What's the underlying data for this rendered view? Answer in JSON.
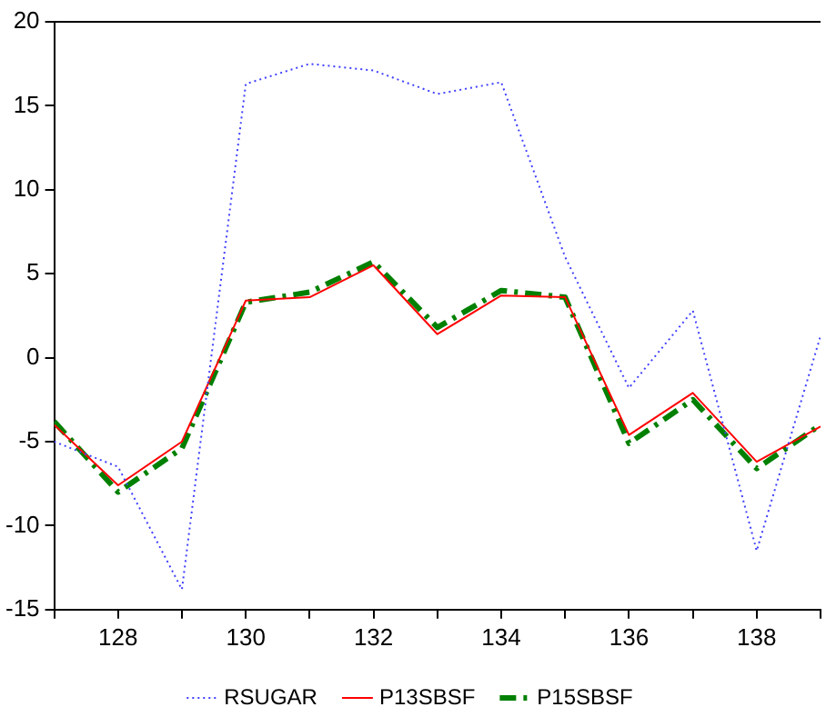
{
  "chart_data": {
    "type": "line",
    "x": [
      127,
      128,
      129,
      130,
      131,
      132,
      133,
      134,
      135,
      136,
      137,
      138,
      139
    ],
    "series": [
      {
        "name": "RSUGAR",
        "color": "#4040ff",
        "line_style": "dotted",
        "values": [
          -5,
          -6.5,
          -13.8,
          16.3,
          17.5,
          17.1,
          15.7,
          16.4,
          6,
          -1.8,
          2.8,
          -11.5,
          1.3
        ]
      },
      {
        "name": "P13SBSF",
        "color": "#ff0000",
        "line_style": "solid",
        "values": [
          -4,
          -7.6,
          -5.0,
          3.4,
          3.6,
          5.5,
          1.4,
          3.7,
          3.6,
          -4.6,
          -2.1,
          -6.2,
          -4.1
        ]
      },
      {
        "name": "P15SBSF",
        "color": "#008000",
        "line_style": "dashed",
        "values": [
          -3.8,
          -8.0,
          -5.4,
          3.3,
          3.9,
          5.7,
          1.8,
          4.0,
          3.6,
          -5.1,
          -2.5,
          -6.6,
          -4.0
        ]
      }
    ],
    "xlim": [
      127,
      139
    ],
    "xticks": [
      {
        "value": 127,
        "label": null
      },
      128,
      {
        "value": 129,
        "label": null
      },
      130,
      {
        "value": 131,
        "label": null
      },
      132,
      {
        "value": 133,
        "label": null
      },
      134,
      {
        "value": 135,
        "label": null
      },
      136,
      {
        "value": 137,
        "label": null
      },
      138,
      {
        "value": 139,
        "label": null
      }
    ],
    "ylim": [
      -15,
      20
    ],
    "yticks": [
      -15,
      -10,
      -5,
      0,
      5,
      10,
      15,
      20
    ],
    "grid": false,
    "legend": "bottom",
    "marker": "none"
  }
}
